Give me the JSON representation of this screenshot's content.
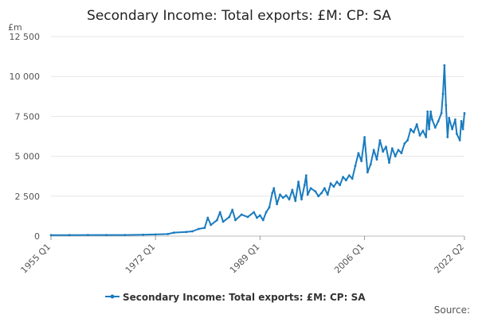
{
  "chart_data": {
    "type": "line",
    "title": "Secondary Income: Total exports: £M: CP: SA",
    "unit_label": "£m",
    "source_label": "Source:",
    "y_ticks": [
      0,
      2500,
      5000,
      7500,
      10000,
      12500
    ],
    "y_tick_labels": [
      "0",
      "2 500",
      "5 000",
      "7 500",
      "10 000",
      "12 500"
    ],
    "ylim": [
      0,
      12500
    ],
    "x_ticks": [
      "1955 Q1",
      "1972 Q1",
      "1989 Q1",
      "2006 Q1",
      "2022 Q2"
    ],
    "xlim": [
      "1955 Q1",
      "2022 Q2"
    ],
    "legend_position": "bottom",
    "grid": "horizontal",
    "series": [
      {
        "name": "Secondary Income: Total exports: £M: CP: SA",
        "color": "#1a7bbf",
        "points": [
          [
            "1955 Q1",
            60
          ],
          [
            "1958 Q1",
            65
          ],
          [
            "1961 Q1",
            68
          ],
          [
            "1964 Q1",
            70
          ],
          [
            "1967 Q1",
            72
          ],
          [
            "1970 Q1",
            85
          ],
          [
            "1972 Q1",
            105
          ],
          [
            "1974 Q1",
            130
          ],
          [
            "1975 Q1",
            220
          ],
          [
            "1977 Q1",
            260
          ],
          [
            "1978 Q1",
            300
          ],
          [
            "1979 Q1",
            450
          ],
          [
            "1980 Q1",
            520
          ],
          [
            "1980 Q3",
            1150
          ],
          [
            "1981 Q1",
            700
          ],
          [
            "1982 Q1",
            1000
          ],
          [
            "1982 Q3",
            1500
          ],
          [
            "1983 Q1",
            900
          ],
          [
            "1984 Q1",
            1200
          ],
          [
            "1984 Q3",
            1650
          ],
          [
            "1985 Q1",
            1000
          ],
          [
            "1986 Q1",
            1350
          ],
          [
            "1987 Q1",
            1200
          ],
          [
            "1988 Q1",
            1500
          ],
          [
            "1988 Q3",
            1150
          ],
          [
            "1989 Q1",
            1300
          ],
          [
            "1989 Q3",
            1000
          ],
          [
            "1990 Q1",
            1500
          ],
          [
            "1990 Q3",
            1800
          ],
          [
            "1991 Q1",
            2700
          ],
          [
            "1991 Q2",
            3000
          ],
          [
            "1991 Q4",
            2000
          ],
          [
            "1992 Q2",
            2600
          ],
          [
            "1992 Q4",
            2400
          ],
          [
            "1993 Q2",
            2550
          ],
          [
            "1993 Q4",
            2300
          ],
          [
            "1994 Q2",
            2900
          ],
          [
            "1994 Q4",
            2200
          ],
          [
            "1995 Q2",
            3400
          ],
          [
            "1995 Q4",
            2300
          ],
          [
            "1996 Q2",
            3200
          ],
          [
            "1996 Q3",
            3800
          ],
          [
            "1996 Q4",
            2600
          ],
          [
            "1997 Q2",
            3000
          ],
          [
            "1998 Q1",
            2800
          ],
          [
            "1998 Q3",
            2500
          ],
          [
            "1999 Q1",
            2700
          ],
          [
            "1999 Q3",
            3000
          ],
          [
            "2000 Q1",
            2600
          ],
          [
            "2000 Q3",
            3300
          ],
          [
            "2001 Q1",
            3100
          ],
          [
            "2001 Q3",
            3400
          ],
          [
            "2002 Q1",
            3200
          ],
          [
            "2002 Q3",
            3700
          ],
          [
            "2003 Q1",
            3500
          ],
          [
            "2003 Q3",
            3800
          ],
          [
            "2004 Q1",
            3600
          ],
          [
            "2004 Q3",
            4400
          ],
          [
            "2005 Q1",
            5200
          ],
          [
            "2005 Q3",
            4700
          ],
          [
            "2006 Q1",
            6200
          ],
          [
            "2006 Q3",
            4000
          ],
          [
            "2007 Q1",
            4500
          ],
          [
            "2007 Q3",
            5400
          ],
          [
            "2008 Q1",
            4800
          ],
          [
            "2008 Q3",
            6000
          ],
          [
            "2009 Q1",
            5300
          ],
          [
            "2009 Q3",
            5600
          ],
          [
            "2010 Q1",
            4600
          ],
          [
            "2010 Q3",
            5500
          ],
          [
            "2011 Q1",
            5000
          ],
          [
            "2011 Q3",
            5400
          ],
          [
            "2012 Q1",
            5200
          ],
          [
            "2012 Q3",
            5800
          ],
          [
            "2013 Q1",
            6000
          ],
          [
            "2013 Q3",
            6700
          ],
          [
            "2014 Q1",
            6500
          ],
          [
            "2014 Q3",
            7000
          ],
          [
            "2015 Q1",
            6300
          ],
          [
            "2015 Q3",
            6600
          ],
          [
            "2016 Q1",
            6200
          ],
          [
            "2016 Q2",
            7800
          ],
          [
            "2016 Q3",
            6700
          ],
          [
            "2016 Q4",
            7800
          ],
          [
            "2017 Q1",
            7300
          ],
          [
            "2017 Q3",
            6800
          ],
          [
            "2018 Q1",
            7200
          ],
          [
            "2018 Q3",
            7700
          ],
          [
            "2018 Q4",
            8900
          ],
          [
            "2019 Q1",
            10700
          ],
          [
            "2019 Q2",
            8200
          ],
          [
            "2019 Q3",
            6200
          ],
          [
            "2019 Q4",
            7400
          ],
          [
            "2020 Q2",
            6700
          ],
          [
            "2020 Q4",
            7300
          ],
          [
            "2021 Q1",
            6400
          ],
          [
            "2021 Q3",
            6000
          ],
          [
            "2021 Q4",
            7200
          ],
          [
            "2022 Q1",
            6700
          ],
          [
            "2022 Q2",
            7700
          ]
        ]
      }
    ]
  }
}
